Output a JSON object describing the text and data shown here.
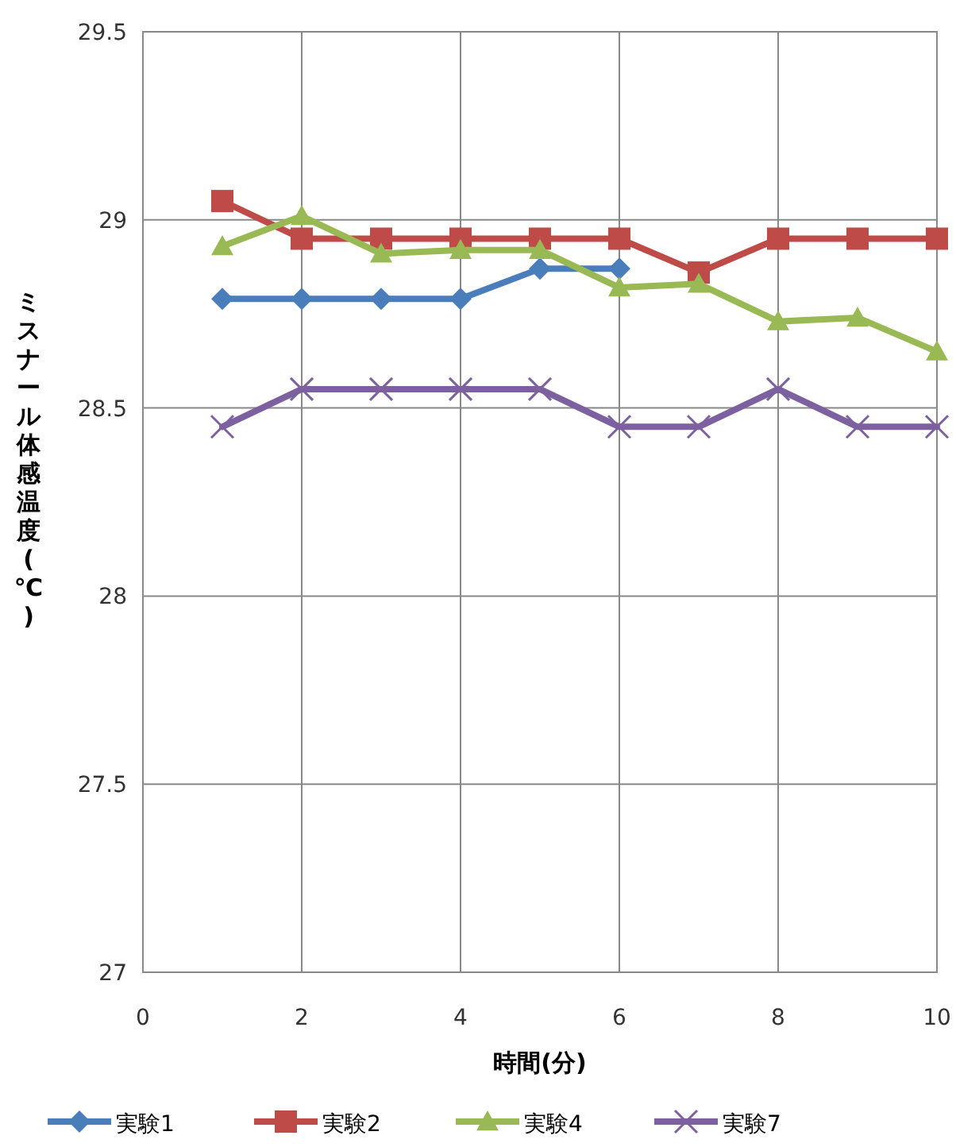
{
  "chart_data": {
    "type": "line",
    "xlabel": "時間(分)",
    "ylabel": "ミスナール体感温度(℃)",
    "x": [
      1,
      2,
      3,
      4,
      5,
      6,
      7,
      8,
      9,
      10
    ],
    "xlim": [
      0,
      10
    ],
    "xticks": [
      0,
      2,
      4,
      6,
      8,
      10
    ],
    "ylim": [
      27,
      29.5
    ],
    "yticks": [
      27,
      27.5,
      28,
      28.5,
      29,
      29.5
    ],
    "grid": true,
    "legend": "bottom",
    "series": [
      {
        "name": "実験1",
        "color": "#4a7ebb",
        "marker": "diamond",
        "values": [
          28.79,
          28.79,
          28.79,
          28.79,
          28.87,
          28.87,
          null,
          null,
          null,
          null
        ]
      },
      {
        "name": "実験2",
        "color": "#be4b48",
        "marker": "square",
        "values": [
          29.05,
          28.95,
          28.95,
          28.95,
          28.95,
          28.95,
          28.86,
          28.95,
          28.95,
          28.95
        ]
      },
      {
        "name": "実験4",
        "color": "#98b954",
        "marker": "triangle",
        "values": [
          28.93,
          29.01,
          28.91,
          28.92,
          28.92,
          28.82,
          28.83,
          28.73,
          28.74,
          28.65
        ]
      },
      {
        "name": "実験7",
        "color": "#7d60a0",
        "marker": "cross",
        "values": [
          28.45,
          28.55,
          28.55,
          28.55,
          28.55,
          28.45,
          28.45,
          28.55,
          28.45,
          28.45
        ]
      }
    ]
  }
}
